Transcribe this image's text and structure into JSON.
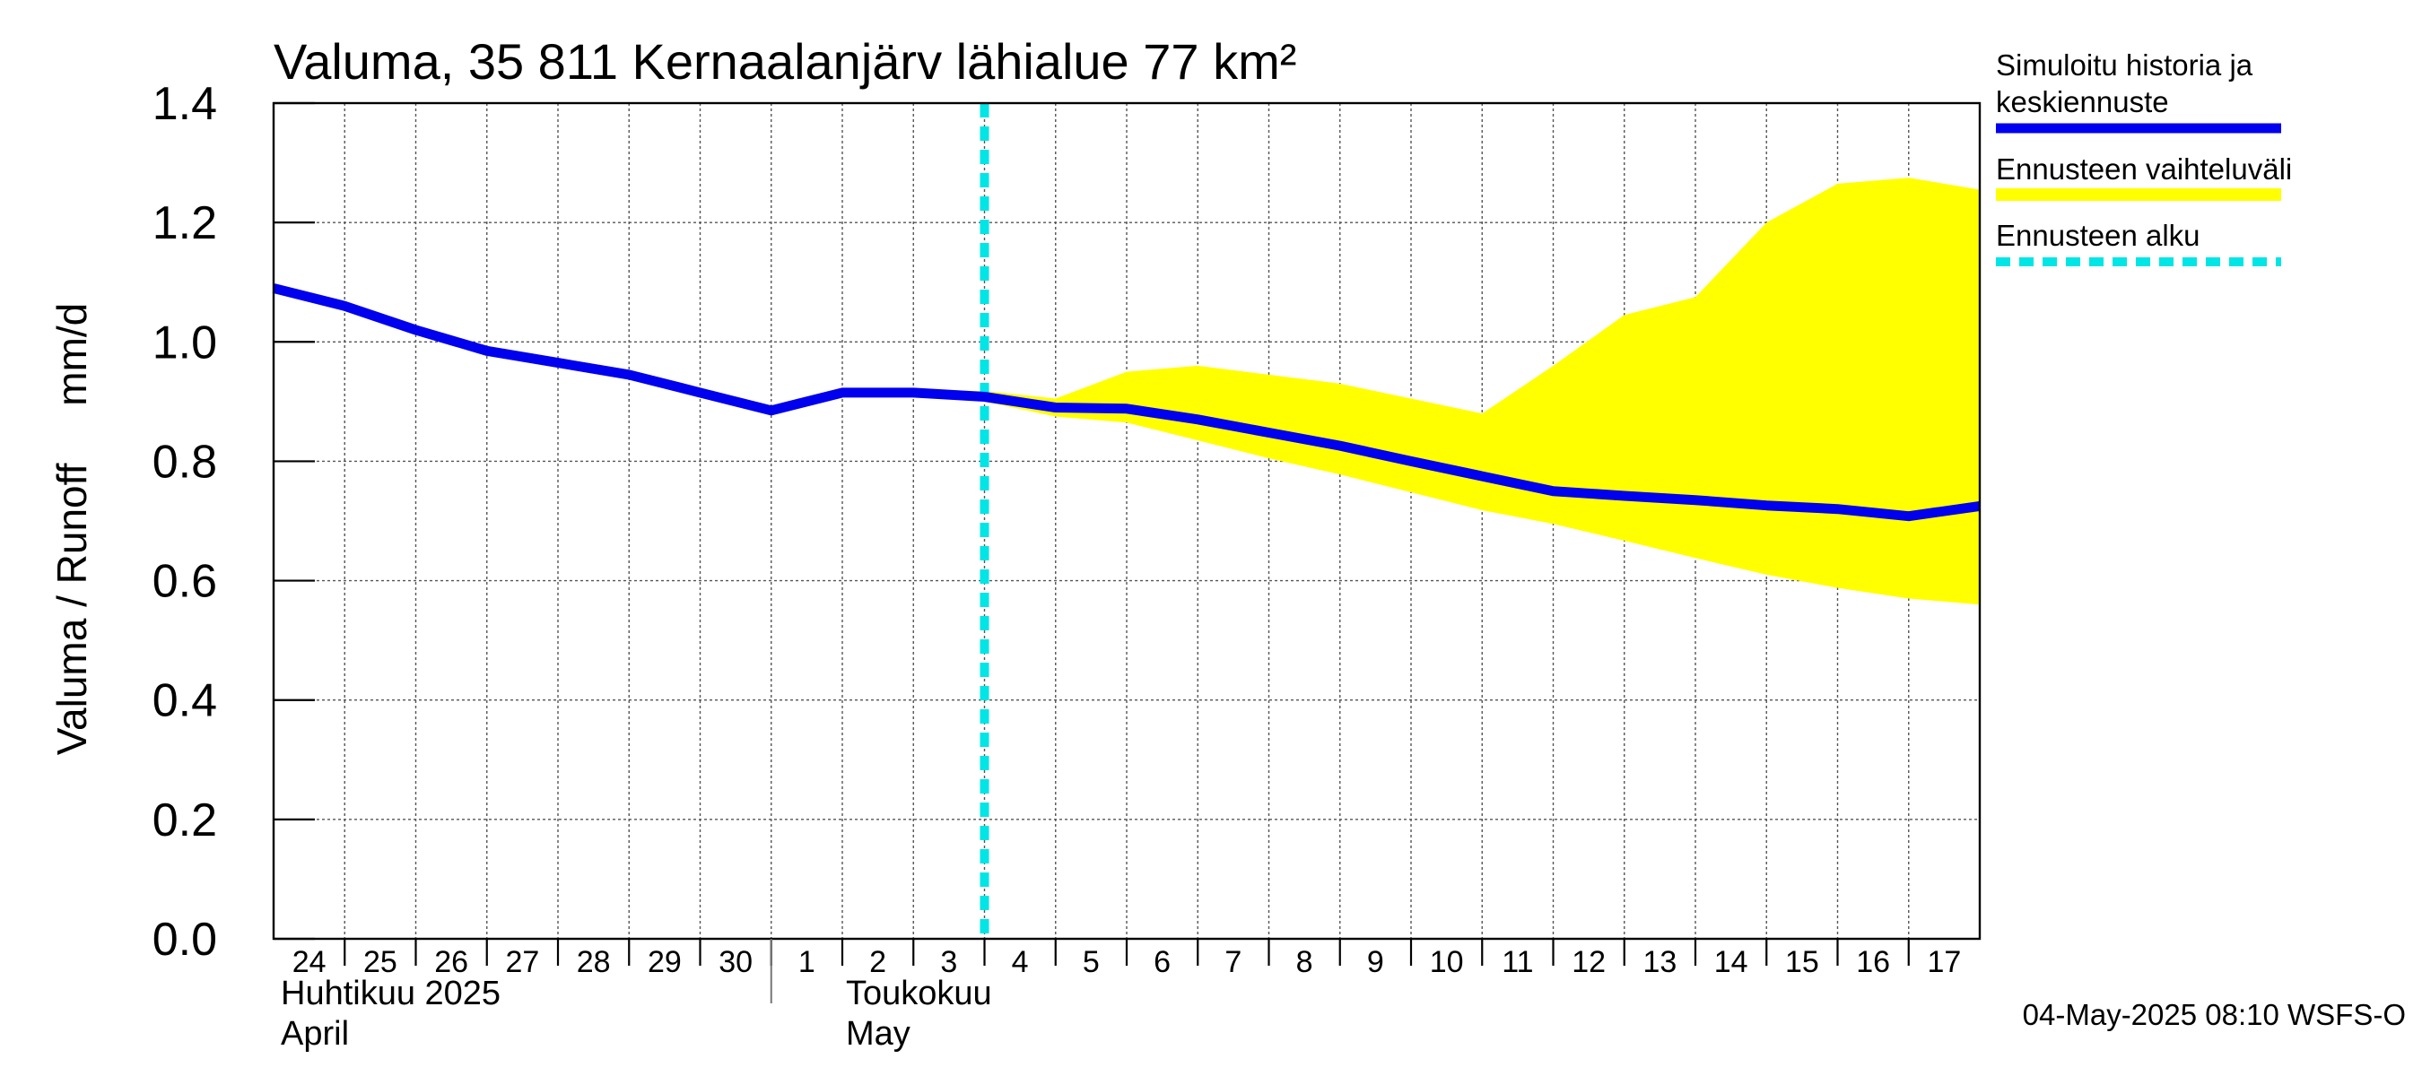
{
  "chart_data": {
    "type": "line",
    "title": "Valuma, 35 811 Kernaalanjärv lähialue 77 km²",
    "ylabel": "Valuma / Runoff     mm/d",
    "ylim": [
      0.0,
      1.4
    ],
    "yticks": [
      "0.0",
      "0.2",
      "0.4",
      "0.6",
      "0.8",
      "1.0",
      "1.2",
      "1.4"
    ],
    "grid": true,
    "x_start": "2025-04-24",
    "x_end": "2025-05-17",
    "xtick_labels": [
      "24",
      "25",
      "26",
      "27",
      "28",
      "29",
      "30",
      "1",
      "2",
      "3",
      "4",
      "5",
      "6",
      "7",
      "8",
      "9",
      "10",
      "11",
      "12",
      "13",
      "14",
      "15",
      "16",
      "17"
    ],
    "month_labels": [
      {
        "line1": "Huhtikuu  2025",
        "line2": "April"
      },
      {
        "line1": "Toukokuu",
        "line2": "May"
      }
    ],
    "x_dates": [
      "2025-04-24",
      "2025-04-25",
      "2025-04-26",
      "2025-04-27",
      "2025-04-28",
      "2025-04-29",
      "2025-04-30",
      "2025-05-01",
      "2025-05-02",
      "2025-05-03",
      "2025-05-04",
      "2025-05-05",
      "2025-05-06",
      "2025-05-07",
      "2025-05-08",
      "2025-05-09",
      "2025-05-10",
      "2025-05-11",
      "2025-05-12",
      "2025-05-13",
      "2025-05-14",
      "2025-05-15",
      "2025-05-16",
      "2025-05-17",
      "2025-05-18"
    ],
    "series": [
      {
        "name": "Simuloitu historia ja keskiennuste",
        "color": "#0000ee",
        "values": [
          1.09,
          1.06,
          1.02,
          0.985,
          0.965,
          0.945,
          0.915,
          0.885,
          0.915,
          0.915,
          0.908,
          0.89,
          0.888,
          0.87,
          0.848,
          0.826,
          0.8,
          0.775,
          0.75,
          0.742,
          0.735,
          0.726,
          0.72,
          0.708,
          0.725
        ]
      }
    ],
    "band": {
      "name": "Ennusteen vaihteluväli",
      "color": "#ffff00",
      "x_dates": [
        "2025-05-03",
        "2025-05-04",
        "2025-05-05",
        "2025-05-06",
        "2025-05-07",
        "2025-05-08",
        "2025-05-09",
        "2025-05-10",
        "2025-05-11",
        "2025-05-12",
        "2025-05-13",
        "2025-05-14",
        "2025-05-15",
        "2025-05-16",
        "2025-05-17",
        "2025-05-18"
      ],
      "upper": [
        0.915,
        0.918,
        0.905,
        0.95,
        0.96,
        0.945,
        0.93,
        0.905,
        0.88,
        0.96,
        1.045,
        1.075,
        1.2,
        1.265,
        1.275,
        1.255
      ],
      "lower": [
        0.915,
        0.9,
        0.875,
        0.865,
        0.835,
        0.805,
        0.778,
        0.748,
        0.718,
        0.695,
        0.667,
        0.638,
        0.61,
        0.588,
        0.57,
        0.56
      ]
    },
    "forecast_start": "2025-05-04T00:00",
    "forecast_start_color": "#00e5e5"
  },
  "legend": {
    "items": [
      {
        "label": "Simuloitu historia ja",
        "label2": "keskiennuste",
        "color": "#0000ee"
      },
      {
        "label": "Ennusteen vaihteluväli",
        "color": "#ffff00"
      },
      {
        "label": "Ennusteen alku",
        "color": "#00e5e5"
      }
    ]
  },
  "footer": "04-May-2025 08:10 WSFS-O"
}
